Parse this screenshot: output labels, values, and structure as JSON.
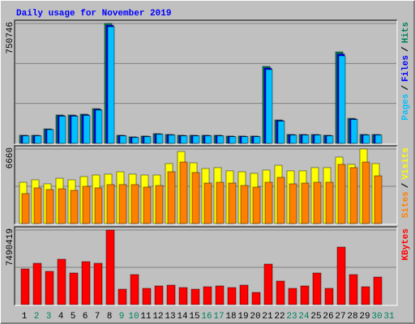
{
  "chart_data": [
    {
      "type": "bar",
      "title": "Daily usage for November 2019",
      "separator": "/",
      "ylim": [
        0,
        750746
      ],
      "yticks": [
        750746
      ],
      "series": [
        {
          "name": "Hits",
          "color": "#00805c",
          "values": [
            51000,
            51000,
            91000,
            178000,
            178000,
            183000,
            218000,
            750746,
            51000,
            41000,
            46000,
            61000,
            56000,
            51000,
            51000,
            51000,
            51000,
            46000,
            46000,
            46000,
            482000,
            147000,
            56000,
            56000,
            56000,
            51000,
            573000,
            157000,
            56000,
            56000,
            null
          ]
        },
        {
          "name": "Files",
          "color": "#0000ff",
          "values": [
            49000,
            49000,
            88000,
            174000,
            174000,
            179000,
            213000,
            740000,
            49000,
            39000,
            44000,
            59000,
            54000,
            49000,
            49000,
            49000,
            49000,
            44000,
            44000,
            44000,
            472000,
            143000,
            54000,
            54000,
            54000,
            49000,
            560000,
            153000,
            54000,
            54000,
            null
          ]
        },
        {
          "name": "Pages",
          "color": "#00c0ff",
          "values": [
            47000,
            47000,
            86000,
            170000,
            170000,
            175000,
            208000,
            730000,
            47000,
            37000,
            42000,
            57000,
            52000,
            47000,
            47000,
            47000,
            47000,
            42000,
            42000,
            42000,
            462000,
            139000,
            52000,
            52000,
            52000,
            47000,
            548000,
            149000,
            52000,
            52000,
            null
          ]
        }
      ]
    },
    {
      "type": "bar",
      "separator": "/",
      "ylim": [
        0,
        6660
      ],
      "yticks": [
        6660
      ],
      "series": [
        {
          "name": "Visits",
          "color": "#ffff00",
          "values": [
            3690,
            3910,
            3550,
            4050,
            3910,
            4200,
            4340,
            4420,
            4630,
            4420,
            4340,
            4340,
            5360,
            6440,
            5430,
            4920,
            5000,
            4710,
            4630,
            4490,
            4780,
            5210,
            4710,
            4710,
            5000,
            5000,
            5940,
            5290,
            6660,
            5360,
            null
          ]
        },
        {
          "name": "Sites",
          "color": "#ff8000",
          "values": [
            2680,
            3190,
            3040,
            3110,
            2970,
            3330,
            3190,
            3480,
            3480,
            3480,
            3260,
            3400,
            4630,
            5500,
            4560,
            3620,
            3690,
            3620,
            3400,
            3260,
            3690,
            4130,
            3550,
            3620,
            3690,
            3690,
            5290,
            5000,
            5500,
            4270,
            null
          ]
        }
      ]
    },
    {
      "type": "bar",
      "ylim": [
        0,
        7490419
      ],
      "yticks": [
        7490419
      ],
      "categories": [
        "1",
        "2",
        "3",
        "4",
        "5",
        "6",
        "7",
        "8",
        "9",
        "10",
        "11",
        "12",
        "13",
        "14",
        "15",
        "16",
        "17",
        "18",
        "19",
        "20",
        "21",
        "22",
        "23",
        "24",
        "25",
        "26",
        "27",
        "28",
        "29",
        "30",
        "31"
      ],
      "weekends": [
        1,
        2,
        8,
        9,
        15,
        16,
        22,
        23,
        29,
        30
      ],
      "weekend_color": "#00805c",
      "series": [
        {
          "name": "KBytes",
          "color": "#ff0000",
          "values": [
            3581000,
            4151000,
            3337000,
            4558000,
            3174000,
            4314000,
            4151000,
            7490419,
            1547000,
            3012000,
            1628000,
            1872000,
            1954000,
            1709000,
            1547000,
            1791000,
            1872000,
            1709000,
            1954000,
            1221000,
            4070000,
            2361000,
            1628000,
            1872000,
            3174000,
            1628000,
            5779000,
            3012000,
            1791000,
            2768000,
            null
          ]
        }
      ]
    }
  ]
}
